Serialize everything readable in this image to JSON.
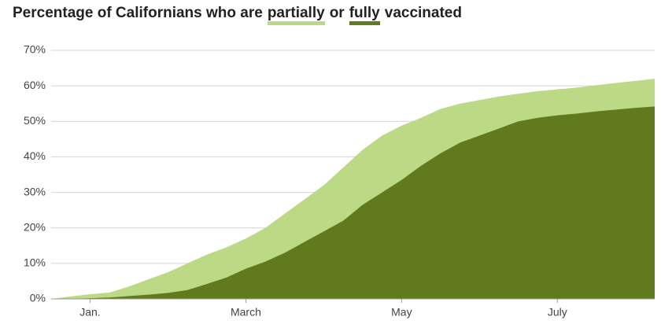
{
  "chart_data": {
    "type": "area",
    "title_parts": [
      "Percentage of Californians who are",
      "or",
      "vaccinated"
    ],
    "categories": [
      null,
      null,
      "Jan.",
      null,
      null,
      null,
      null,
      null,
      null,
      null,
      "March",
      null,
      null,
      null,
      null,
      null,
      null,
      null,
      "May",
      null,
      null,
      null,
      null,
      null,
      null,
      null,
      "July",
      null,
      null,
      null,
      null,
      null
    ],
    "series": [
      {
        "name": "partially",
        "color": "#bcd985",
        "values": [
          0,
          0.7,
          1.3,
          1.8,
          3.5,
          5.5,
          7.5,
          10,
          12.5,
          14.5,
          17,
          20,
          24,
          28,
          32,
          37,
          42,
          46,
          48.8,
          51,
          53.5,
          55,
          56,
          57,
          57.8,
          58.5,
          59,
          59.5,
          60.2,
          60.8,
          61.4,
          62
        ]
      },
      {
        "name": "fully",
        "color": "#617a1e",
        "values": [
          0,
          0,
          0.2,
          0.4,
          0.8,
          1.2,
          1.7,
          2.5,
          4.2,
          6,
          8.5,
          10.5,
          13,
          16,
          19,
          22,
          26.5,
          30,
          33.5,
          37.5,
          41,
          44,
          46,
          48,
          50,
          51,
          51.7,
          52.2,
          52.8,
          53.3,
          53.8,
          54.2
        ]
      }
    ],
    "ylim": [
      0,
      70
    ],
    "yticks": [
      {
        "value": 0,
        "label": "0%"
      },
      {
        "value": 10,
        "label": "10%"
      },
      {
        "value": 20,
        "label": "20%"
      },
      {
        "value": 30,
        "label": "30%"
      },
      {
        "value": 40,
        "label": "40%"
      },
      {
        "value": 50,
        "label": "50%"
      },
      {
        "value": 60,
        "label": "60%"
      },
      {
        "value": 70,
        "label": "70%"
      }
    ],
    "grid": true
  }
}
